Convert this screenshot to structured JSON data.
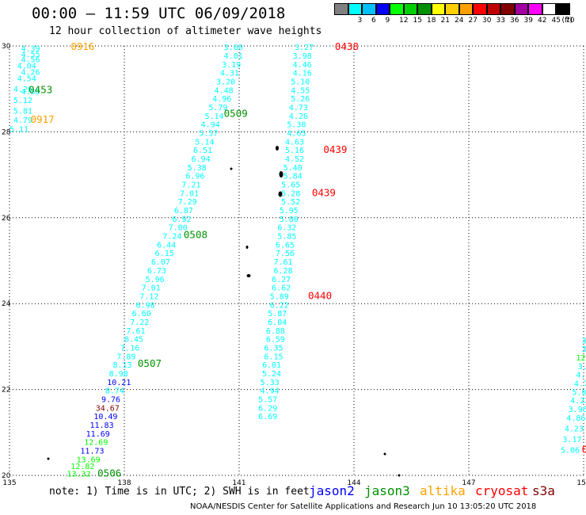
{
  "header": {
    "title": "00:00 – 11:59 UTC 06/09/2018",
    "subtitle": "12 hour collection of altimeter wave heights"
  },
  "legend": {
    "unit": "(ft)",
    "bins": [
      {
        "label": "",
        "color": "#808080"
      },
      {
        "label": "3",
        "color": "#00ffff"
      },
      {
        "label": "6",
        "color": "#00c0ff"
      },
      {
        "label": "9",
        "color": "#0000ff"
      },
      {
        "label": "12",
        "color": "#00ff00"
      },
      {
        "label": "15",
        "color": "#00d000"
      },
      {
        "label": "18",
        "color": "#009000"
      },
      {
        "label": "21",
        "color": "#ffff00"
      },
      {
        "label": "24",
        "color": "#ffd000"
      },
      {
        "label": "27",
        "color": "#ffa000"
      },
      {
        "label": "30",
        "color": "#ff0000"
      },
      {
        "label": "33",
        "color": "#c00000"
      },
      {
        "label": "36",
        "color": "#800000"
      },
      {
        "label": "39",
        "color": "#a000a0"
      },
      {
        "label": "42",
        "color": "#ff00ff"
      },
      {
        "label": "45",
        "color": "#ffffff"
      },
      {
        "label": "70",
        "color": "#000000"
      }
    ]
  },
  "map": {
    "lon_range": [
      135,
      150
    ],
    "lat_range": [
      20,
      30
    ],
    "lon_ticks": [
      "135",
      "138",
      "141",
      "144",
      "147",
      "150"
    ],
    "lat_ticks": [
      "30",
      "28",
      "26",
      "24",
      "22",
      "20"
    ]
  },
  "tracks": [
    {
      "name": "altika-pass-a",
      "color": "#ffa000",
      "values": [
        {
          "lon": 136.6,
          "lat": 29.98,
          "text": "0916",
          "label": true
        }
      ]
    },
    {
      "name": "jason3-pass-a",
      "color": "#009000",
      "values": [
        {
          "lon": 135.3,
          "lat": 29.95,
          "text": "4.39",
          "c": "#00ffff"
        },
        {
          "lon": 135.3,
          "lat": 29.82,
          "text": "4.55",
          "c": "#00ffff"
        },
        {
          "lon": 135.3,
          "lat": 29.7,
          "text": "4.56",
          "c": "#00ffff"
        },
        {
          "lon": 135.2,
          "lat": 29.55,
          "text": "4.04",
          "c": "#00ffff"
        },
        {
          "lon": 135.3,
          "lat": 29.4,
          "text": "4.26",
          "c": "#00ffff"
        },
        {
          "lon": 135.2,
          "lat": 29.25,
          "text": "4.54",
          "c": "#00ffff"
        },
        {
          "lon": 135.1,
          "lat": 29.0,
          "text": "4.26",
          "c": "#00ffff"
        },
        {
          "lon": 135.3,
          "lat": 28.95,
          "text": "4.50",
          "c": "#00ffff"
        },
        {
          "lon": 135.5,
          "lat": 28.98,
          "text": "0453",
          "label": true
        },
        {
          "lon": 135.1,
          "lat": 28.75,
          "text": "5.12",
          "c": "#00ffff"
        },
        {
          "lon": 135.1,
          "lat": 28.5,
          "text": "5.81",
          "c": "#00ffff"
        },
        {
          "lon": 135.1,
          "lat": 28.28,
          "text": "4.79",
          "c": "#00ffff"
        },
        {
          "lon": 135.0,
          "lat": 28.07,
          "text": "5.11",
          "c": "#00ffff"
        }
      ]
    },
    {
      "name": "altika-pass-b",
      "color": "#ffa000",
      "values": [
        {
          "lon": 135.55,
          "lat": 28.28,
          "text": "0917",
          "label": true
        }
      ]
    },
    {
      "name": "jason3-pass-b",
      "color": "#009000",
      "values": [
        {
          "lon": 140.6,
          "lat": 29.98,
          "text": "3.60",
          "c": "#00ffff"
        },
        {
          "lon": 140.6,
          "lat": 29.78,
          "text": "4.01",
          "c": "#00ffff"
        },
        {
          "lon": 140.55,
          "lat": 29.58,
          "text": "3.19",
          "c": "#00ffff"
        },
        {
          "lon": 140.5,
          "lat": 29.38,
          "text": "4.31",
          "c": "#00ffff"
        },
        {
          "lon": 140.4,
          "lat": 29.18,
          "text": "3.20",
          "c": "#00ffff"
        },
        {
          "lon": 140.35,
          "lat": 28.98,
          "text": "4.48",
          "c": "#00ffff"
        },
        {
          "lon": 140.3,
          "lat": 28.78,
          "text": "4.96",
          "c": "#00ffff"
        },
        {
          "lon": 140.2,
          "lat": 28.58,
          "text": "5.79",
          "c": "#00ffff"
        },
        {
          "lon": 140.6,
          "lat": 28.42,
          "text": "0509",
          "label": true
        },
        {
          "lon": 140.1,
          "lat": 28.38,
          "text": "5.14",
          "c": "#00ffff"
        },
        {
          "lon": 140.0,
          "lat": 28.18,
          "text": "4.94",
          "c": "#00ffff"
        },
        {
          "lon": 139.95,
          "lat": 27.98,
          "text": "5.57",
          "c": "#00ffff"
        },
        {
          "lon": 139.85,
          "lat": 27.78,
          "text": "5.14",
          "c": "#00ffff"
        },
        {
          "lon": 139.8,
          "lat": 27.58,
          "text": "6.51",
          "c": "#00ffff"
        },
        {
          "lon": 139.75,
          "lat": 27.38,
          "text": "6.94",
          "c": "#00ffff"
        },
        {
          "lon": 139.65,
          "lat": 27.18,
          "text": "5.38",
          "c": "#00ffff"
        },
        {
          "lon": 139.6,
          "lat": 26.98,
          "text": "6.96",
          "c": "#00ffff"
        },
        {
          "lon": 139.5,
          "lat": 26.78,
          "text": "7.21",
          "c": "#00ffff"
        },
        {
          "lon": 139.45,
          "lat": 26.58,
          "text": "7.01",
          "c": "#00ffff"
        },
        {
          "lon": 139.4,
          "lat": 26.38,
          "text": "7.29",
          "c": "#00ffff"
        },
        {
          "lon": 139.3,
          "lat": 26.18,
          "text": "6.87",
          "c": "#00ffff"
        },
        {
          "lon": 139.25,
          "lat": 25.98,
          "text": "6.92",
          "c": "#00ffff"
        },
        {
          "lon": 139.15,
          "lat": 25.78,
          "text": "7.00",
          "c": "#00ffff"
        },
        {
          "lon": 139.0,
          "lat": 25.58,
          "text": "7.24",
          "c": "#00ffff"
        },
        {
          "lon": 139.55,
          "lat": 25.6,
          "text": "0508",
          "label": true
        },
        {
          "lon": 138.85,
          "lat": 25.38,
          "text": "6.44",
          "c": "#00ffff"
        },
        {
          "lon": 138.8,
          "lat": 25.18,
          "text": "6.15",
          "c": "#00ffff"
        },
        {
          "lon": 138.7,
          "lat": 24.98,
          "text": "6.07",
          "c": "#00ffff"
        },
        {
          "lon": 138.6,
          "lat": 24.78,
          "text": "6.73",
          "c": "#00ffff"
        },
        {
          "lon": 138.55,
          "lat": 24.58,
          "text": "5.96",
          "c": "#00ffff"
        },
        {
          "lon": 138.45,
          "lat": 24.38,
          "text": "7.01",
          "c": "#00ffff"
        },
        {
          "lon": 138.4,
          "lat": 24.18,
          "text": "7.12",
          "c": "#00ffff"
        },
        {
          "lon": 138.3,
          "lat": 23.98,
          "text": "6.98",
          "c": "#00ffff"
        },
        {
          "lon": 138.2,
          "lat": 23.78,
          "text": "6.60",
          "c": "#00ffff"
        },
        {
          "lon": 138.15,
          "lat": 23.58,
          "text": "7.22",
          "c": "#00ffff"
        },
        {
          "lon": 138.05,
          "lat": 23.38,
          "text": "7.61",
          "c": "#00ffff"
        },
        {
          "lon": 138.0,
          "lat": 23.18,
          "text": "8.45",
          "c": "#00ffff"
        },
        {
          "lon": 137.9,
          "lat": 22.98,
          "text": "7.16",
          "c": "#00ffff"
        },
        {
          "lon": 137.8,
          "lat": 22.78,
          "text": "7.89",
          "c": "#00ffff"
        },
        {
          "lon": 137.7,
          "lat": 22.58,
          "text": "8.13",
          "c": "#00ffff"
        },
        {
          "lon": 138.35,
          "lat": 22.6,
          "text": "0507",
          "label": true
        },
        {
          "lon": 137.6,
          "lat": 22.38,
          "text": "8.98",
          "c": "#00ffff"
        },
        {
          "lon": 137.55,
          "lat": 22.18,
          "text": "10.21",
          "c": "#0000ff"
        },
        {
          "lon": 137.5,
          "lat": 21.98,
          "text": "8.74",
          "c": "#00ffff"
        },
        {
          "lon": 137.4,
          "lat": 21.78,
          "text": "9.76",
          "c": "#0000ff"
        },
        {
          "lon": 137.25,
          "lat": 21.58,
          "text": "34.67",
          "c": "#800000"
        },
        {
          "lon": 137.2,
          "lat": 21.38,
          "text": "10.49",
          "c": "#0000ff"
        },
        {
          "lon": 137.1,
          "lat": 21.18,
          "text": "11.83",
          "c": "#0000ff"
        },
        {
          "lon": 137.0,
          "lat": 20.98,
          "text": "11.69",
          "c": "#0000ff"
        },
        {
          "lon": 136.95,
          "lat": 20.78,
          "text": "12.69",
          "c": "#00ff00"
        },
        {
          "lon": 136.85,
          "lat": 20.58,
          "text": "11.73",
          "c": "#0000ff"
        },
        {
          "lon": 136.75,
          "lat": 20.38,
          "text": "13.69",
          "c": "#00ff00"
        },
        {
          "lon": 136.6,
          "lat": 20.22,
          "text": "12.82",
          "c": "#00ff00"
        },
        {
          "lon": 136.5,
          "lat": 20.05,
          "text": "13.32",
          "c": "#00ff00"
        },
        {
          "lon": 137.3,
          "lat": 20.05,
          "text": "0506",
          "label": true
        }
      ]
    },
    {
      "name": "cryosat-pass",
      "color": "#ff0000",
      "values": [
        {
          "lon": 142.45,
          "lat": 29.98,
          "text": "3.27",
          "c": "#00ffff"
        },
        {
          "lon": 143.5,
          "lat": 29.98,
          "text": "0438",
          "label": true
        },
        {
          "lon": 142.4,
          "lat": 29.78,
          "text": "3.98",
          "c": "#00ffff"
        },
        {
          "lon": 142.4,
          "lat": 29.58,
          "text": "4.46",
          "c": "#00ffff"
        },
        {
          "lon": 142.4,
          "lat": 29.38,
          "text": "4.16",
          "c": "#00ffff"
        },
        {
          "lon": 142.35,
          "lat": 29.18,
          "text": "5.10",
          "c": "#00ffff"
        },
        {
          "lon": 142.35,
          "lat": 28.98,
          "text": "4.55",
          "c": "#00ffff"
        },
        {
          "lon": 142.35,
          "lat": 28.78,
          "text": "5.26",
          "c": "#00ffff"
        },
        {
          "lon": 142.3,
          "lat": 28.58,
          "text": "4.73",
          "c": "#00ffff"
        },
        {
          "lon": 142.3,
          "lat": 28.38,
          "text": "4.26",
          "c": "#00ffff"
        },
        {
          "lon": 142.25,
          "lat": 28.18,
          "text": "5.38",
          "c": "#00ffff"
        },
        {
          "lon": 142.25,
          "lat": 27.98,
          "text": "4.65",
          "c": "#00ffff"
        },
        {
          "lon": 142.2,
          "lat": 27.78,
          "text": "4.63",
          "c": "#00ffff"
        },
        {
          "lon": 142.2,
          "lat": 27.58,
          "text": "5.16",
          "c": "#00ffff"
        },
        {
          "lon": 143.2,
          "lat": 27.58,
          "text": "0439",
          "label": true
        },
        {
          "lon": 142.2,
          "lat": 27.38,
          "text": "4.52",
          "c": "#00ffff"
        },
        {
          "lon": 142.15,
          "lat": 27.18,
          "text": "5.40",
          "c": "#00ffff"
        },
        {
          "lon": 142.15,
          "lat": 26.98,
          "text": "5.84",
          "c": "#00ffff"
        },
        {
          "lon": 142.1,
          "lat": 26.78,
          "text": "5.65",
          "c": "#00ffff"
        },
        {
          "lon": 142.1,
          "lat": 26.58,
          "text": "5.28",
          "c": "#00ffff"
        },
        {
          "lon": 142.9,
          "lat": 26.58,
          "text": "0439",
          "label": true
        },
        {
          "lon": 142.1,
          "lat": 26.38,
          "text": "5.52",
          "c": "#00ffff"
        },
        {
          "lon": 142.05,
          "lat": 26.18,
          "text": "5.95",
          "c": "#00ffff"
        },
        {
          "lon": 142.05,
          "lat": 25.98,
          "text": "5.80",
          "c": "#00ffff"
        },
        {
          "lon": 142.0,
          "lat": 25.78,
          "text": "6.32",
          "c": "#00ffff"
        },
        {
          "lon": 142.0,
          "lat": 25.58,
          "text": "5.85",
          "c": "#00ffff"
        },
        {
          "lon": 141.95,
          "lat": 25.38,
          "text": "6.65",
          "c": "#00ffff"
        },
        {
          "lon": 141.95,
          "lat": 25.18,
          "text": "7.56",
          "c": "#00ffff"
        },
        {
          "lon": 141.9,
          "lat": 24.98,
          "text": "7.61",
          "c": "#00ffff"
        },
        {
          "lon": 141.9,
          "lat": 24.78,
          "text": "6.28",
          "c": "#00ffff"
        },
        {
          "lon": 141.85,
          "lat": 24.58,
          "text": "6.27",
          "c": "#00ffff"
        },
        {
          "lon": 141.85,
          "lat": 24.38,
          "text": "6.62",
          "c": "#00ffff"
        },
        {
          "lon": 141.8,
          "lat": 24.18,
          "text": "5.89",
          "c": "#00ffff"
        },
        {
          "lon": 142.8,
          "lat": 24.18,
          "text": "0440",
          "label": true
        },
        {
          "lon": 141.8,
          "lat": 23.98,
          "text": "6.22",
          "c": "#00ffff"
        },
        {
          "lon": 141.75,
          "lat": 23.78,
          "text": "5.87",
          "c": "#00ffff"
        },
        {
          "lon": 141.75,
          "lat": 23.58,
          "text": "6.04",
          "c": "#00ffff"
        },
        {
          "lon": 141.7,
          "lat": 23.38,
          "text": "6.88",
          "c": "#00ffff"
        },
        {
          "lon": 141.7,
          "lat": 23.18,
          "text": "6.59",
          "c": "#00ffff"
        },
        {
          "lon": 141.65,
          "lat": 22.98,
          "text": "6.35",
          "c": "#00ffff"
        },
        {
          "lon": 141.65,
          "lat": 22.78,
          "text": "6.15",
          "c": "#00ffff"
        },
        {
          "lon": 141.6,
          "lat": 22.58,
          "text": "6.01",
          "c": "#00ffff"
        },
        {
          "lon": 141.6,
          "lat": 22.38,
          "text": "5.24",
          "c": "#00ffff"
        },
        {
          "lon": 141.55,
          "lat": 22.18,
          "text": "5.33",
          "c": "#00ffff"
        },
        {
          "lon": 141.55,
          "lat": 21.98,
          "text": "4.94",
          "c": "#00ffff"
        },
        {
          "lon": 141.5,
          "lat": 21.78,
          "text": "5.57",
          "c": "#00ffff"
        },
        {
          "lon": 141.5,
          "lat": 21.58,
          "text": "6.29",
          "c": "#00ffff"
        },
        {
          "lon": 141.5,
          "lat": 21.38,
          "text": "6.69",
          "c": "#00ffff"
        }
      ]
    },
    {
      "name": "east-pass",
      "color": "#00ffff",
      "values": [
        {
          "lon": 149.95,
          "lat": 23.15,
          "text": "3.",
          "c": "#00ffff"
        },
        {
          "lon": 149.95,
          "lat": 22.95,
          "text": "3.",
          "c": "#00ffff"
        },
        {
          "lon": 149.8,
          "lat": 22.75,
          "text": "12.",
          "c": "#00ff00"
        },
        {
          "lon": 149.85,
          "lat": 22.55,
          "text": "3.5",
          "c": "#00ffff"
        },
        {
          "lon": 149.8,
          "lat": 22.35,
          "text": "4.9",
          "c": "#00ffff"
        },
        {
          "lon": 149.75,
          "lat": 22.15,
          "text": "4.79",
          "c": "#00ffff"
        },
        {
          "lon": 149.7,
          "lat": 21.95,
          "text": "5.07",
          "c": "#00ffff"
        },
        {
          "lon": 149.65,
          "lat": 21.75,
          "text": "4.22",
          "c": "#00ffff"
        },
        {
          "lon": 149.6,
          "lat": 21.55,
          "text": "3.96",
          "c": "#00ffff"
        },
        {
          "lon": 149.55,
          "lat": 21.35,
          "text": "4.86",
          "c": "#00ffff"
        },
        {
          "lon": 149.5,
          "lat": 21.1,
          "text": "4.23",
          "c": "#00ffff"
        },
        {
          "lon": 149.45,
          "lat": 20.85,
          "text": "3.17",
          "c": "#00ffff"
        },
        {
          "lon": 149.4,
          "lat": 20.6,
          "text": "5.06",
          "c": "#00ffff"
        },
        {
          "lon": 149.95,
          "lat": 20.6,
          "text": "0",
          "label": true,
          "c": "#ff0000"
        }
      ]
    }
  ],
  "footer": {
    "note": "note:  1) Time is in UTC;  2) SWH is in feet",
    "satellites": [
      {
        "name": "jason2",
        "color": "#0000ff"
      },
      {
        "name": "jason3",
        "color": "#009000"
      },
      {
        "name": "altika",
        "color": "#ffa000"
      },
      {
        "name": "cryosat",
        "color": "#ff0000"
      },
      {
        "name": "s3a",
        "color": "#800000"
      }
    ],
    "credit": "NOAA/NESDIS Center for Satellite Applications and Research     Jun 10 13:05:20 UTC 2018"
  }
}
